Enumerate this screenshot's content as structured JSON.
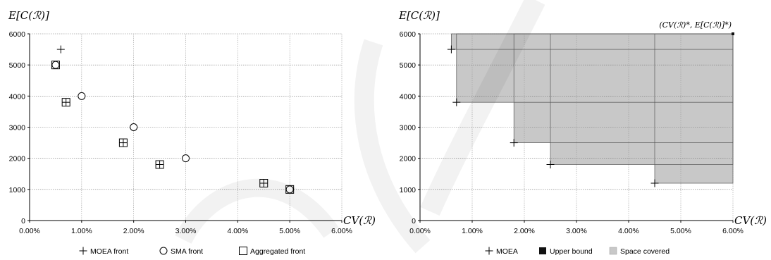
{
  "chart_data": [
    {
      "type": "scatter",
      "ylabel": "E[C(ℛ)]",
      "xlabel": "CV(ℛ)",
      "xlim": [
        0,
        0.06
      ],
      "ylim": [
        0,
        6000
      ],
      "x_ticks": [
        "0.00%",
        "1.00%",
        "2.00%",
        "3.00%",
        "4.00%",
        "5.00%",
        "6.00%"
      ],
      "y_ticks": [
        "0",
        "1000",
        "2000",
        "3000",
        "4000",
        "5000",
        "6000"
      ],
      "grid": "on",
      "legend_placement": "bottom",
      "series": [
        {
          "name": "MOEA front",
          "marker": "plus",
          "x": [
            0.006,
            0.007,
            0.018,
            0.025,
            0.045
          ],
          "y": [
            5500,
            3800,
            2500,
            1800,
            1200
          ]
        },
        {
          "name": "SMA front",
          "marker": "circle",
          "x": [
            0.005,
            0.01,
            0.02,
            0.03,
            0.05
          ],
          "y": [
            5000,
            4000,
            3000,
            2000,
            1000
          ]
        },
        {
          "name": "Aggregated front",
          "marker": "square",
          "x": [
            0.005,
            0.007,
            0.018,
            0.025,
            0.045,
            0.05
          ],
          "y": [
            5000,
            3800,
            2500,
            1800,
            1200,
            1000
          ]
        }
      ]
    },
    {
      "type": "area",
      "ylabel": "E[C(ℛ)]",
      "xlabel": "CV(ℛ)",
      "xlim": [
        0,
        0.06
      ],
      "ylim": [
        0,
        6000
      ],
      "x_ticks": [
        "0.00%",
        "1.00%",
        "2.00%",
        "3.00%",
        "4.00%",
        "5.00%",
        "6.00%"
      ],
      "y_ticks": [
        "0",
        "1000",
        "2000",
        "3000",
        "4000",
        "5000",
        "6000"
      ],
      "grid": "on",
      "legend_placement": "bottom",
      "annotation": "(CV(ℛ)*, E[C(ℛ)]*)",
      "upper_bound": {
        "x": 0.06,
        "y": 6000
      },
      "series": [
        {
          "name": "MOEA",
          "marker": "plus",
          "x": [
            0.006,
            0.007,
            0.018,
            0.025,
            0.045
          ],
          "y": [
            5500,
            3800,
            2500,
            1800,
            1200
          ]
        },
        {
          "name": "Upper bound",
          "marker": "filled-square"
        },
        {
          "name": "Space covered",
          "marker": "gray-area"
        }
      ],
      "colors": {
        "covered": "#c8c8c8",
        "upper_bound": "#111111"
      }
    }
  ]
}
